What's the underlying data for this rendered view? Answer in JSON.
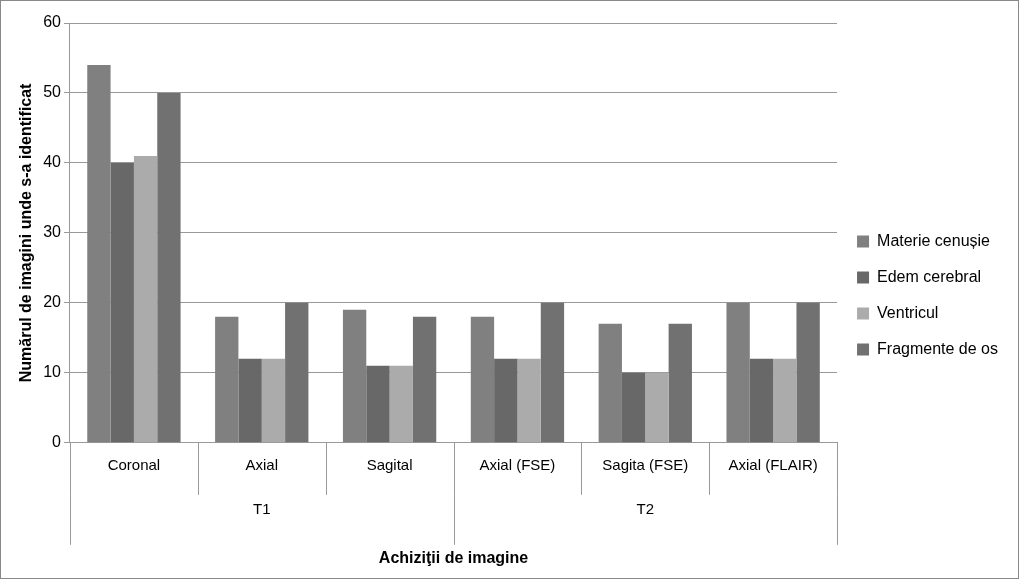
{
  "chart_data": {
    "type": "bar",
    "xlabel": "Achiziţii de imagine",
    "ylabel": "Numărul de imagini unde s-a identificat",
    "categories": [
      "Coronal",
      "Axial",
      "Sagital",
      "Axial (FSE)",
      "Sagita (FSE)",
      "Axial (FLAIR)"
    ],
    "series": [
      {
        "name": "Materie cenușie",
        "color": "#808080",
        "values": [
          54,
          18,
          19,
          18,
          17,
          20
        ]
      },
      {
        "name": "Edem cerebral",
        "color": "#686868",
        "values": [
          40,
          12,
          11,
          12,
          10,
          12
        ]
      },
      {
        "name": "Ventricul",
        "color": "#ababab",
        "values": [
          41,
          12,
          11,
          12,
          10,
          12
        ]
      },
      {
        "name": "Fragmente de os",
        "color": "#717171",
        "values": [
          50,
          20,
          18,
          20,
          17,
          20
        ]
      }
    ],
    "annotations": [
      "T1",
      "T2"
    ],
    "ylim": [
      0,
      60
    ],
    "yticks": [
      0,
      10,
      20,
      30,
      40,
      50,
      60
    ],
    "grid": "y",
    "legend": "right"
  }
}
